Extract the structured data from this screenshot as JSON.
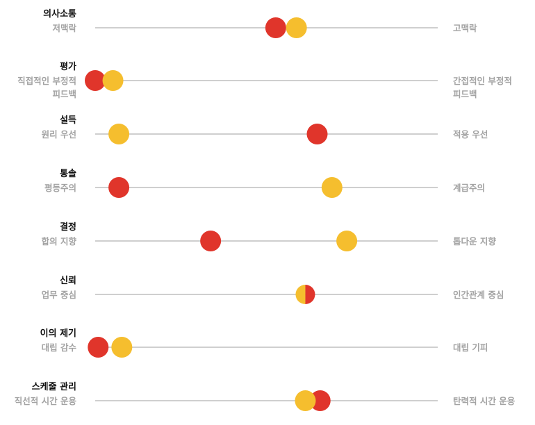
{
  "chart_data": {
    "type": "scatter",
    "scale": [
      0,
      100
    ],
    "series_colors": [
      "#e0352b",
      "#f5be2e"
    ],
    "rows": [
      {
        "title": "의사소통",
        "left_label": [
          "저맥락"
        ],
        "right_label": [
          "고맥락"
        ],
        "values": [
          61,
          68
        ]
      },
      {
        "title": "평가",
        "left_label": [
          "직접적인 부정적",
          "피드백"
        ],
        "right_label": [
          "간접적인 부정적",
          "피드백"
        ],
        "values": [
          0,
          6
        ]
      },
      {
        "title": "설득",
        "left_label": [
          "원리 우선"
        ],
        "right_label": [
          "적용 우선"
        ],
        "values": [
          75,
          8
        ]
      },
      {
        "title": "통솔",
        "left_label": [
          "평등주의"
        ],
        "right_label": [
          "계급주의"
        ],
        "values": [
          8,
          80
        ]
      },
      {
        "title": "결정",
        "left_label": [
          "합의 지향"
        ],
        "right_label": [
          "톱다운 지향"
        ],
        "values": [
          39,
          85
        ]
      },
      {
        "title": "신뢰",
        "left_label": [
          "업무 중심"
        ],
        "right_label": [
          "인간관계 중심"
        ],
        "values": [
          71,
          71
        ]
      },
      {
        "title": "이의 제기",
        "left_label": [
          "대립 감수"
        ],
        "right_label": [
          "대립 기피"
        ],
        "values": [
          1,
          9
        ]
      },
      {
        "title": "스케줄 관리",
        "left_label": [
          "직선적 시간 운용"
        ],
        "right_label": [
          "탄력적 시간 운용"
        ],
        "values": [
          76,
          71
        ]
      }
    ]
  }
}
